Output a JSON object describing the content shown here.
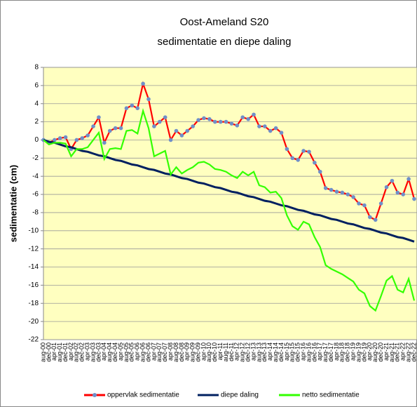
{
  "chart_data": {
    "type": "line",
    "title": "Oost-Ameland S20",
    "subtitle": "sedimentatie en diepe daling",
    "y_label": "sedimentatie (cm)",
    "categories": [
      "aug-00",
      "dec-00",
      "apr-01",
      "aug-01",
      "dec-01",
      "apr-02",
      "aug-02",
      "dec-02",
      "apr-03",
      "aug-03",
      "dec-03",
      "apr-04",
      "aug-04",
      "dec-04",
      "apr-05",
      "aug-05",
      "dec-05",
      "apr-06",
      "aug-06",
      "dec-06",
      "apr-07",
      "aug-07",
      "dec-07",
      "apr-08",
      "aug-08",
      "dec-08",
      "apr-09",
      "aug-09",
      "dec-09",
      "apr-10",
      "aug-10",
      "dec-10",
      "apr-11",
      "aug-11",
      "dec-11",
      "apr-12",
      "aug-12",
      "dec-12",
      "apr-13",
      "aug-13",
      "dec-13",
      "apr-14",
      "aug-14",
      "dec-14",
      "apr-15",
      "aug-15",
      "dec-15",
      "apr-16",
      "aug-16",
      "dec-16",
      "apr-17",
      "aug-17",
      "dec-17",
      "apr-18",
      "aug-18",
      "dec-18",
      "apr-19",
      "aug-19",
      "dec-19",
      "apr-20",
      "aug-20",
      "dec-20",
      "apr-21",
      "aug-21",
      "dec-21",
      "apr-22",
      "aug-22",
      "dec-22"
    ],
    "series": [
      {
        "name": "oppervlak sedimentatie",
        "color": "#ff0000",
        "marker_color": "#6f8fc9",
        "values": [
          0,
          -0.3,
          0,
          0.2,
          0.3,
          -1,
          0,
          0.2,
          0.5,
          1.5,
          2.5,
          -0.3,
          1,
          1.3,
          1.3,
          3.5,
          3.8,
          3.5,
          6.2,
          4.5,
          1.5,
          2,
          2.5,
          0,
          1,
          0.5,
          1,
          1.5,
          2.2,
          2.4,
          2.3,
          2,
          2,
          2,
          1.8,
          1.6,
          2.5,
          2.3,
          2.8,
          1.5,
          1.5,
          1,
          1.3,
          0.8,
          -1,
          -2,
          -2.2,
          -1.2,
          -1.3,
          -2.5,
          -3.5,
          -5.3,
          -5.5,
          -5.7,
          -5.8,
          -6,
          -6.3,
          -7,
          -7.2,
          -8.5,
          -8.8,
          -7,
          -5.2,
          -4.5,
          -5.8,
          -6,
          -4.3,
          -6.5
        ]
      },
      {
        "name": "diepe daling",
        "color": "#002060",
        "values": [
          0,
          -0.2,
          -0.3,
          -0.5,
          -0.7,
          -0.8,
          -1,
          -1.2,
          -1.3,
          -1.5,
          -1.7,
          -1.8,
          -2,
          -2.2,
          -2.3,
          -2.5,
          -2.7,
          -2.8,
          -3,
          -3.2,
          -3.3,
          -3.5,
          -3.7,
          -3.8,
          -4,
          -4.2,
          -4.3,
          -4.5,
          -4.7,
          -4.8,
          -5,
          -5.2,
          -5.3,
          -5.5,
          -5.7,
          -5.8,
          -6,
          -6.2,
          -6.3,
          -6.5,
          -6.7,
          -6.8,
          -7,
          -7.2,
          -7.3,
          -7.5,
          -7.7,
          -7.8,
          -8,
          -8.2,
          -8.3,
          -8.5,
          -8.7,
          -8.8,
          -9,
          -9.2,
          -9.3,
          -9.5,
          -9.7,
          -9.8,
          -10,
          -10.2,
          -10.3,
          -10.5,
          -10.7,
          -10.8,
          -11,
          -11.2
        ]
      },
      {
        "name": "netto sedimentatie",
        "color": "#33ff00",
        "values": [
          0,
          -0.5,
          -0.3,
          -0.3,
          -0.4,
          -1.8,
          -1,
          -1,
          -0.8,
          0,
          0.8,
          -2.1,
          -1,
          -0.9,
          -1,
          1,
          1.1,
          0.7,
          3.2,
          1.3,
          -1.8,
          -1.5,
          -1.2,
          -3.8,
          -3,
          -3.7,
          -3.3,
          -3,
          -2.5,
          -2.4,
          -2.7,
          -3.2,
          -3.3,
          -3.5,
          -3.9,
          -4.2,
          -3.5,
          -3.9,
          -3.5,
          -5,
          -5.2,
          -5.8,
          -5.7,
          -6.4,
          -8.3,
          -9.5,
          -9.9,
          -9,
          -9.3,
          -10.7,
          -11.8,
          -13.8,
          -14.2,
          -14.5,
          -14.8,
          -15.2,
          -15.6,
          -16.5,
          -16.9,
          -18.3,
          -18.8,
          -17.2,
          -15.5,
          -15,
          -16.5,
          -16.8,
          -15.3,
          -17.7
        ]
      }
    ],
    "ylim": [
      -22,
      8
    ],
    "yticks": [
      -22,
      -20,
      -18,
      -16,
      -14,
      -12,
      -10,
      -8,
      -6,
      -4,
      -2,
      0,
      2,
      4,
      6,
      8
    ],
    "grid": true,
    "plot_background": "#ffffc0",
    "legend": "bottom"
  }
}
